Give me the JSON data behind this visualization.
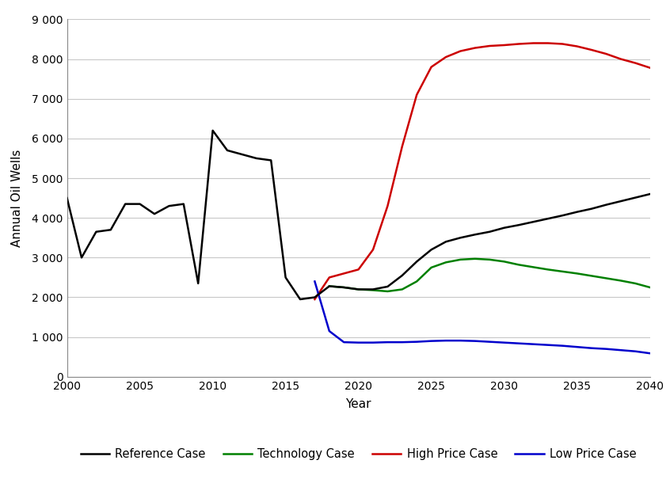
{
  "xlabel": "Year",
  "ylabel": "Annual Oil Wells",
  "xlim": [
    2000,
    2040
  ],
  "ylim": [
    0,
    9000
  ],
  "yticks": [
    0,
    1000,
    2000,
    3000,
    4000,
    5000,
    6000,
    7000,
    8000,
    9000
  ],
  "xticks": [
    2000,
    2005,
    2010,
    2015,
    2020,
    2025,
    2030,
    2035,
    2040
  ],
  "reference_case": {
    "x": [
      2000,
      2001,
      2002,
      2003,
      2004,
      2005,
      2006,
      2007,
      2008,
      2009,
      2010,
      2011,
      2012,
      2013,
      2014,
      2015,
      2016,
      2017,
      2018,
      2019,
      2020,
      2021,
      2022,
      2023,
      2024,
      2025,
      2026,
      2027,
      2028,
      2029,
      2030,
      2031,
      2032,
      2033,
      2034,
      2035,
      2036,
      2037,
      2038,
      2039,
      2040
    ],
    "y": [
      4500,
      3000,
      3650,
      3700,
      4350,
      4350,
      4100,
      4300,
      4350,
      2350,
      6200,
      5700,
      5600,
      5500,
      5450,
      2500,
      1950,
      2000,
      2280,
      2250,
      2200,
      2200,
      2270,
      2550,
      2900,
      3200,
      3400,
      3500,
      3580,
      3650,
      3750,
      3820,
      3900,
      3980,
      4060,
      4150,
      4230,
      4330,
      4420,
      4510,
      4600
    ],
    "color": "#000000",
    "label": "Reference Case",
    "linewidth": 1.8
  },
  "technology_case": {
    "x": [
      2018,
      2019,
      2020,
      2021,
      2022,
      2023,
      2024,
      2025,
      2026,
      2027,
      2028,
      2029,
      2030,
      2031,
      2032,
      2033,
      2034,
      2035,
      2036,
      2037,
      2038,
      2039,
      2040
    ],
    "y": [
      2280,
      2250,
      2200,
      2180,
      2150,
      2200,
      2400,
      2750,
      2880,
      2950,
      2970,
      2950,
      2900,
      2820,
      2760,
      2700,
      2650,
      2600,
      2540,
      2480,
      2420,
      2350,
      2250
    ],
    "color": "#008000",
    "label": "Technology Case",
    "linewidth": 1.8
  },
  "high_price_case": {
    "x": [
      2017,
      2018,
      2019,
      2020,
      2021,
      2022,
      2023,
      2024,
      2025,
      2026,
      2027,
      2028,
      2029,
      2030,
      2031,
      2032,
      2033,
      2034,
      2035,
      2036,
      2037,
      2038,
      2039,
      2040
    ],
    "y": [
      1950,
      2500,
      2600,
      2700,
      3200,
      4300,
      5800,
      7100,
      7800,
      8050,
      8200,
      8280,
      8330,
      8350,
      8380,
      8400,
      8400,
      8380,
      8320,
      8230,
      8130,
      8000,
      7900,
      7780
    ],
    "color": "#cc0000",
    "label": "High Price Case",
    "linewidth": 1.8
  },
  "low_price_case": {
    "x": [
      2017,
      2018,
      2019,
      2020,
      2021,
      2022,
      2023,
      2024,
      2025,
      2026,
      2027,
      2028,
      2029,
      2030,
      2031,
      2032,
      2033,
      2034,
      2035,
      2036,
      2037,
      2038,
      2039,
      2040
    ],
    "y": [
      2400,
      1150,
      870,
      860,
      860,
      870,
      870,
      880,
      900,
      910,
      910,
      900,
      880,
      860,
      840,
      820,
      800,
      780,
      750,
      720,
      700,
      670,
      640,
      590
    ],
    "color": "#0000cc",
    "label": "Low Price Case",
    "linewidth": 1.8
  },
  "background_color": "#ffffff",
  "grid_color": "#c8c8c8",
  "legend_colors": [
    "#000000",
    "#008000",
    "#cc0000",
    "#0000cc"
  ]
}
